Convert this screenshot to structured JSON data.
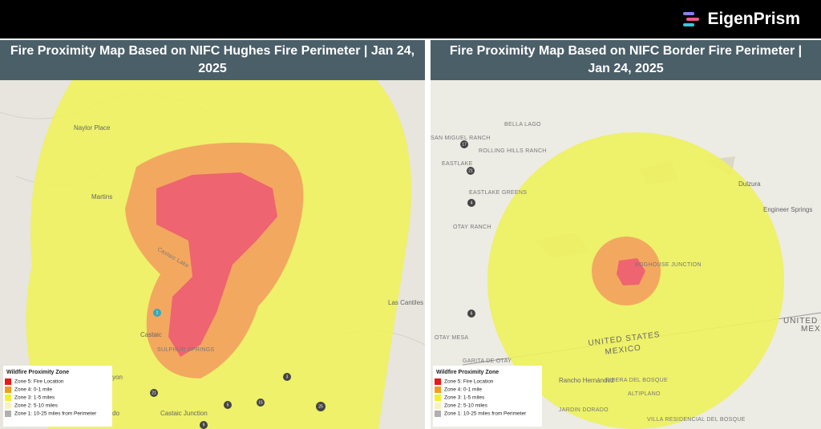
{
  "header": {
    "logo": "EigenPrism"
  },
  "panels": [
    {
      "title": "Fire Proximity Map Based on NIFC Hughes Fire Perimeter | Jan 24, 2025",
      "places": [
        "Naylor Place",
        "Martins",
        "Castaic Lake",
        "Castaic",
        "SULPHUR SPRINGS",
        "Las Cantiles",
        "Castaic Junction",
        "yon",
        "do"
      ],
      "markers": [
        "1",
        "3",
        "21",
        "5",
        "15",
        "25",
        "9"
      ],
      "legend": {
        "title": "Wildfire Proximity Zone",
        "items": [
          "Zone 5: Fire Location",
          "Zone 4: 0-1 mile",
          "Zone 3: 1-5 miles",
          "Zone 2: 5-10 miles",
          "Zone 1: 10-25 miles from Perimeter"
        ]
      }
    },
    {
      "title": "Fire Proximity Map Based on NIFC Border Fire Perimeter | Jan 24, 2025",
      "places": [
        "BELLA LAGO",
        "SAN MIGUEL RANCH",
        "ROLLING HILLS RANCH",
        "EASTLAKE",
        "EASTLAKE GREENS",
        "OTAY RANCH",
        "Dulzura",
        "Engineer Springs",
        "BOGHOUSE JUNCTION",
        "UNITED STATES",
        "MEXICO",
        "OTAY MESA",
        "GARITA DE OTAY",
        "Rancho Hernández",
        "RIBERA DEL BOSQUE",
        "ALTIPLANO",
        "JARDIN DORADO",
        "VILLA RESIDENCIAL DEL BOSQUE",
        "UNITED S",
        "MEXI"
      ],
      "markers": [
        "17",
        "21",
        "4",
        "6"
      ],
      "legend": {
        "title": "Wildfire Proximity Zone",
        "items": [
          "Zone 5: Fire Location",
          "Zone 4: 0-1 mile",
          "Zone 3: 1-5 miles",
          "Zone 2: 5-10 miles",
          "Zone 1: 10-25 miles from Perimeter"
        ]
      }
    }
  ]
}
